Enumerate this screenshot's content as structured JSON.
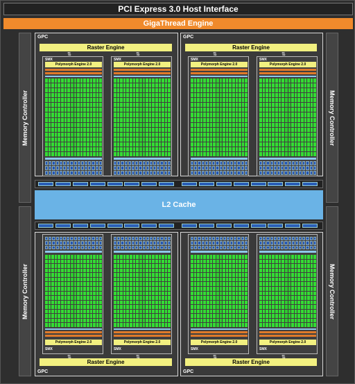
{
  "pcie_label": "PCI Express 3.0 Host Interface",
  "gigathread_label": "GigaThread Engine",
  "memory_controller_label": "Memory Controller",
  "gpc_label": "GPC",
  "raster_engine_label": "Raster Engine",
  "smx_label": "SMX",
  "polymorph_label": "Polymorph Engine 2.0",
  "l2_label": "L2 Cache",
  "colors": {
    "gigathread": "#f08a2c",
    "raster": "#f2f080",
    "core": "#33dd33",
    "l2": "#6ab3e6",
    "ld_st": "#2355b5",
    "cache_bar": "#8cc8ea",
    "orange_bar": "#e07a2a"
  }
}
